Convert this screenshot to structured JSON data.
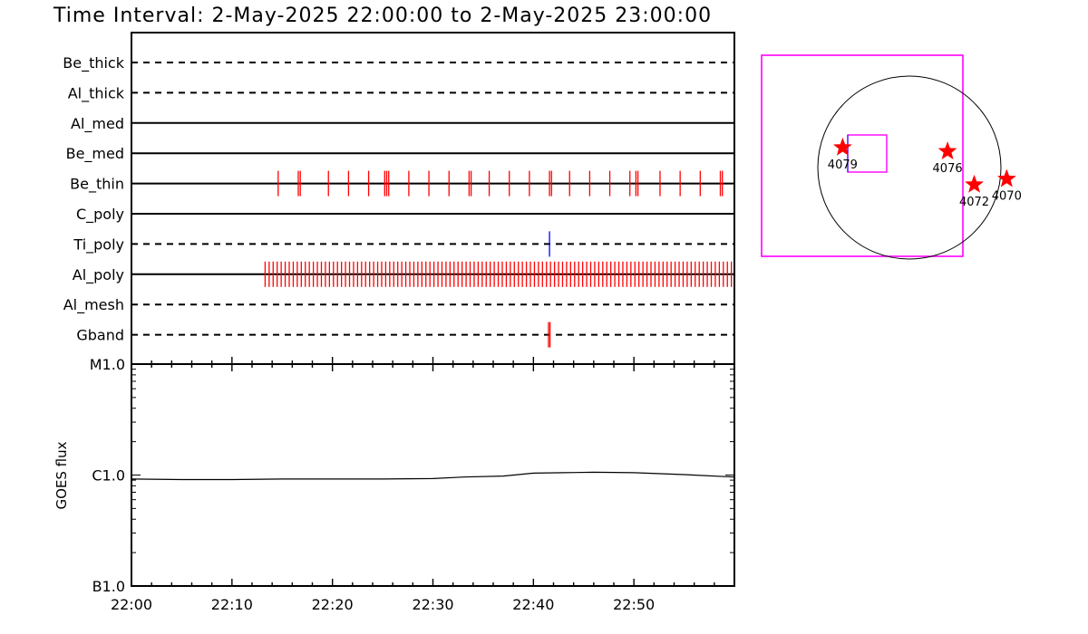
{
  "header": {
    "title": "Time Interval:  2-May-2025 22:00:00 to  2-May-2025 23:00:00"
  },
  "colors": {
    "axis": "#000000",
    "exposure_tick": "#ff0000",
    "tipoly_tick": "#0000ff",
    "fov_box": "#ff00ff",
    "solar_disk": "#000000",
    "region_star": "#ff0000"
  },
  "chart_data": [
    {
      "type": "timeline",
      "title": "",
      "xlabel": "",
      "x_range": [
        "22:00",
        "23:00"
      ],
      "x_tick_labels": [
        "22:00",
        "22:10",
        "22:20",
        "22:30",
        "22:40",
        "22:50"
      ],
      "filters": [
        {
          "name": "Be_thick",
          "line": "dashed",
          "events": []
        },
        {
          "name": "Al_thick",
          "line": "dashed",
          "events": []
        },
        {
          "name": "Al_med",
          "line": "solid",
          "events": []
        },
        {
          "name": "Be_med",
          "line": "solid",
          "events": []
        },
        {
          "name": "Be_thin",
          "line": "solid",
          "color": "#ff0000",
          "events": [
            14.6,
            16.6,
            16.8,
            19.6,
            21.6,
            23.6,
            25.2,
            25.4,
            25.6,
            27.6,
            29.6,
            31.6,
            33.6,
            33.8,
            35.6,
            37.6,
            39.6,
            41.6,
            41.8,
            43.6,
            45.6,
            47.6,
            49.6,
            50.2,
            50.4,
            52.6,
            54.6,
            56.6,
            58.6,
            58.8
          ]
        },
        {
          "name": "C_poly",
          "line": "solid",
          "events": []
        },
        {
          "name": "Ti_poly",
          "line": "dashed",
          "color": "#0000ff",
          "events": [
            41.6
          ]
        },
        {
          "name": "Al_poly",
          "line": "solid",
          "color": "#ff0000",
          "events_range": {
            "start": 13.3,
            "end": 59.9,
            "step": 0.4
          }
        },
        {
          "name": "Al_mesh",
          "line": "dashed",
          "events": []
        },
        {
          "name": "Gband",
          "line": "dashed",
          "color": "#ff0000",
          "events": [
            41.5,
            41.65
          ]
        }
      ]
    },
    {
      "type": "line",
      "title": "",
      "ylabel": "GOES flux",
      "y_scale": "log",
      "y_range": [
        "B1.0",
        "M1.0"
      ],
      "y_tick_labels": [
        "M1.0",
        "C1.0",
        "B1.0"
      ],
      "x_range": [
        "22:00",
        "23:00"
      ],
      "x_tick_labels": [
        "22:00",
        "22:10",
        "22:20",
        "22:30",
        "22:40",
        "22:50"
      ],
      "series": [
        {
          "x": [
            0,
            5,
            10,
            15,
            20,
            25,
            30,
            33,
            37,
            40,
            43,
            46,
            50,
            55,
            60
          ],
          "y": [
            "C0.92",
            "C0.91",
            "C0.91",
            "C0.92",
            "C0.92",
            "C0.92",
            "C0.93",
            "C0.96",
            "C0.98",
            "C1.04",
            "C1.05",
            "C1.06",
            "C1.05",
            "C1.01",
            "C0.96"
          ]
        }
      ]
    },
    {
      "type": "map",
      "title": "",
      "regions": [
        {
          "label": "4079",
          "x": -700,
          "y": 210
        },
        {
          "label": "4076",
          "x": 400,
          "y": 170
        },
        {
          "label": "4072",
          "x": 680,
          "y": -180
        },
        {
          "label": "4070",
          "x": 1020,
          "y": -120
        }
      ]
    }
  ]
}
